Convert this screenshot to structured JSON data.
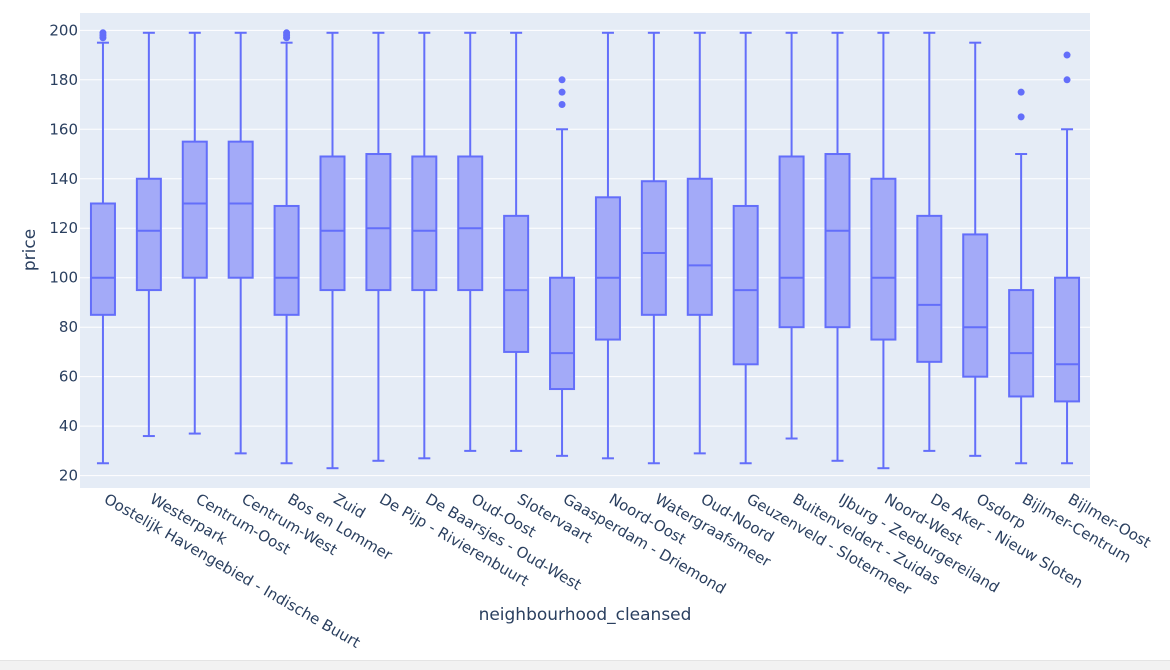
{
  "chart_data": {
    "type": "box",
    "xlabel": "neighbourhood_cleansed",
    "ylabel": "price",
    "ylim": [
      15,
      207
    ],
    "yticks": [
      20,
      40,
      60,
      80,
      100,
      120,
      140,
      160,
      180,
      200
    ],
    "grid": true,
    "legend": "none",
    "colors": {
      "plot_bg": "#e5ecf6",
      "grid": "#ffffff",
      "box_line": "#636efa",
      "box_fill": "#a3aaf8",
      "text": "#2a3f5f"
    },
    "categories": [
      "Oostelijk Havengebied - Indische Buurt",
      "Westerpark",
      "Centrum-Oost",
      "Centrum-West",
      "Bos en Lommer",
      "Zuid",
      "De Pijp - Rivierenbuurt",
      "De Baarsjes - Oud-West",
      "Oud-Oost",
      "Slotervaart",
      "Gaasperdam - Driemond",
      "Noord-Oost",
      "Watergraafsmeer",
      "Oud-Noord",
      "Geuzenveld - Slotermeer",
      "Buitenveldert - Zuidas",
      "IJburg - Zeeburgereiland",
      "Noord-West",
      "De Aker - Nieuw Sloten",
      "Osdorp",
      "Bijlmer-Centrum",
      "Bijlmer-Oost"
    ],
    "boxes": [
      {
        "min": 25,
        "q1": 85,
        "median": 100,
        "q3": 130,
        "max": 195,
        "outliers": [
          197,
          198,
          199
        ]
      },
      {
        "min": 36,
        "q1": 95,
        "median": 119,
        "q3": 140,
        "max": 199,
        "outliers": []
      },
      {
        "min": 37,
        "q1": 100,
        "median": 130,
        "q3": 155,
        "max": 199,
        "outliers": []
      },
      {
        "min": 29,
        "q1": 100,
        "median": 130,
        "q3": 155,
        "max": 199,
        "outliers": []
      },
      {
        "min": 25,
        "q1": 85,
        "median": 100,
        "q3": 129,
        "max": 195,
        "outliers": [
          197,
          198,
          199
        ]
      },
      {
        "min": 23,
        "q1": 95,
        "median": 119,
        "q3": 149,
        "max": 199,
        "outliers": []
      },
      {
        "min": 26,
        "q1": 95,
        "median": 120,
        "q3": 150,
        "max": 199,
        "outliers": []
      },
      {
        "min": 27,
        "q1": 95,
        "median": 119,
        "q3": 149,
        "max": 199,
        "outliers": []
      },
      {
        "min": 30,
        "q1": 95,
        "median": 120,
        "q3": 149,
        "max": 199,
        "outliers": []
      },
      {
        "min": 30,
        "q1": 70,
        "median": 95,
        "q3": 125,
        "max": 199,
        "outliers": []
      },
      {
        "min": 28,
        "q1": 55,
        "median": 69.5,
        "q3": 100,
        "max": 160,
        "outliers": [
          170,
          175,
          180
        ]
      },
      {
        "min": 27,
        "q1": 75,
        "median": 100,
        "q3": 132.5,
        "max": 199,
        "outliers": []
      },
      {
        "min": 25,
        "q1": 85,
        "median": 110,
        "q3": 139,
        "max": 199,
        "outliers": []
      },
      {
        "min": 29,
        "q1": 85,
        "median": 105,
        "q3": 140,
        "max": 199,
        "outliers": []
      },
      {
        "min": 25,
        "q1": 65,
        "median": 95,
        "q3": 129,
        "max": 199,
        "outliers": []
      },
      {
        "min": 35,
        "q1": 80,
        "median": 100,
        "q3": 149,
        "max": 199,
        "outliers": []
      },
      {
        "min": 26,
        "q1": 80,
        "median": 119,
        "q3": 150,
        "max": 199,
        "outliers": []
      },
      {
        "min": 23,
        "q1": 75,
        "median": 100,
        "q3": 140,
        "max": 199,
        "outliers": []
      },
      {
        "min": 30,
        "q1": 66,
        "median": 89,
        "q3": 125,
        "max": 199,
        "outliers": []
      },
      {
        "min": 28,
        "q1": 60,
        "median": 80,
        "q3": 117.5,
        "max": 195,
        "outliers": []
      },
      {
        "min": 25,
        "q1": 52,
        "median": 69.5,
        "q3": 95,
        "max": 150,
        "outliers": [
          165,
          175
        ]
      },
      {
        "min": 25,
        "q1": 50,
        "median": 65,
        "q3": 100,
        "max": 160,
        "outliers": [
          180,
          190
        ]
      }
    ]
  }
}
